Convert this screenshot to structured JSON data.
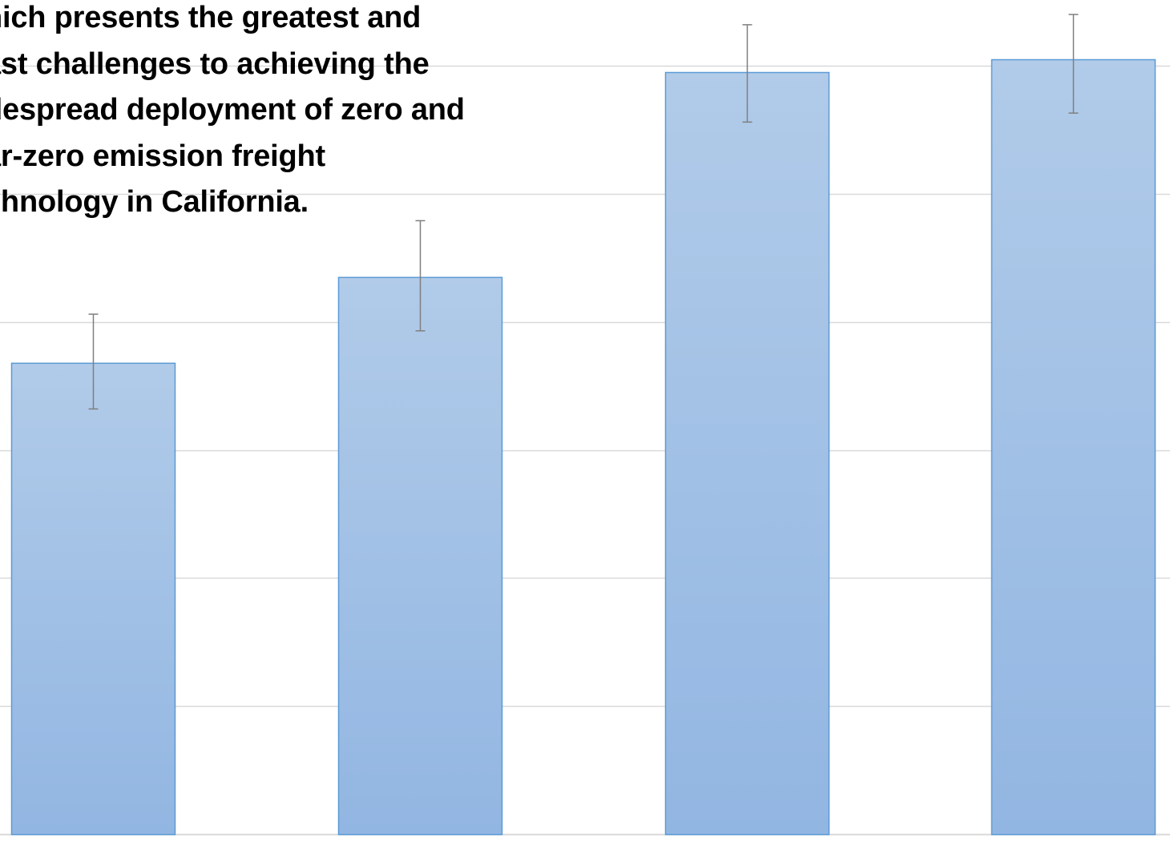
{
  "chart_data": {
    "type": "bar",
    "title": "Which presents the greatest and least challenges to achieving the widespread deployment of zero and near-zero emission freight technology in California.",
    "title_lines": [
      "hich presents the greatest and",
      "ast challenges to achieving the",
      "despread deployment of zero and",
      "ar-zero emission freight",
      "chnology in California."
    ],
    "xlabel": "",
    "ylabel": "",
    "ylim": [
      0,
      6
    ],
    "grid": true,
    "categories": [
      "",
      "",
      "",
      ""
    ],
    "series": [
      {
        "values": [
          3.68,
          4.35,
          5.95,
          6.05
        ],
        "error_low": [
          3.32,
          3.93,
          5.56,
          5.63
        ],
        "error_high": [
          4.06,
          4.79,
          6.32,
          6.4
        ]
      }
    ],
    "colors": {
      "bar_fill_top": "#b1cbe9",
      "bar_fill_bottom": "#92b6e2",
      "bar_stroke": "#5b9bd5",
      "error_bar": "#7f7f7f",
      "grid": "#d9d9d9"
    }
  }
}
